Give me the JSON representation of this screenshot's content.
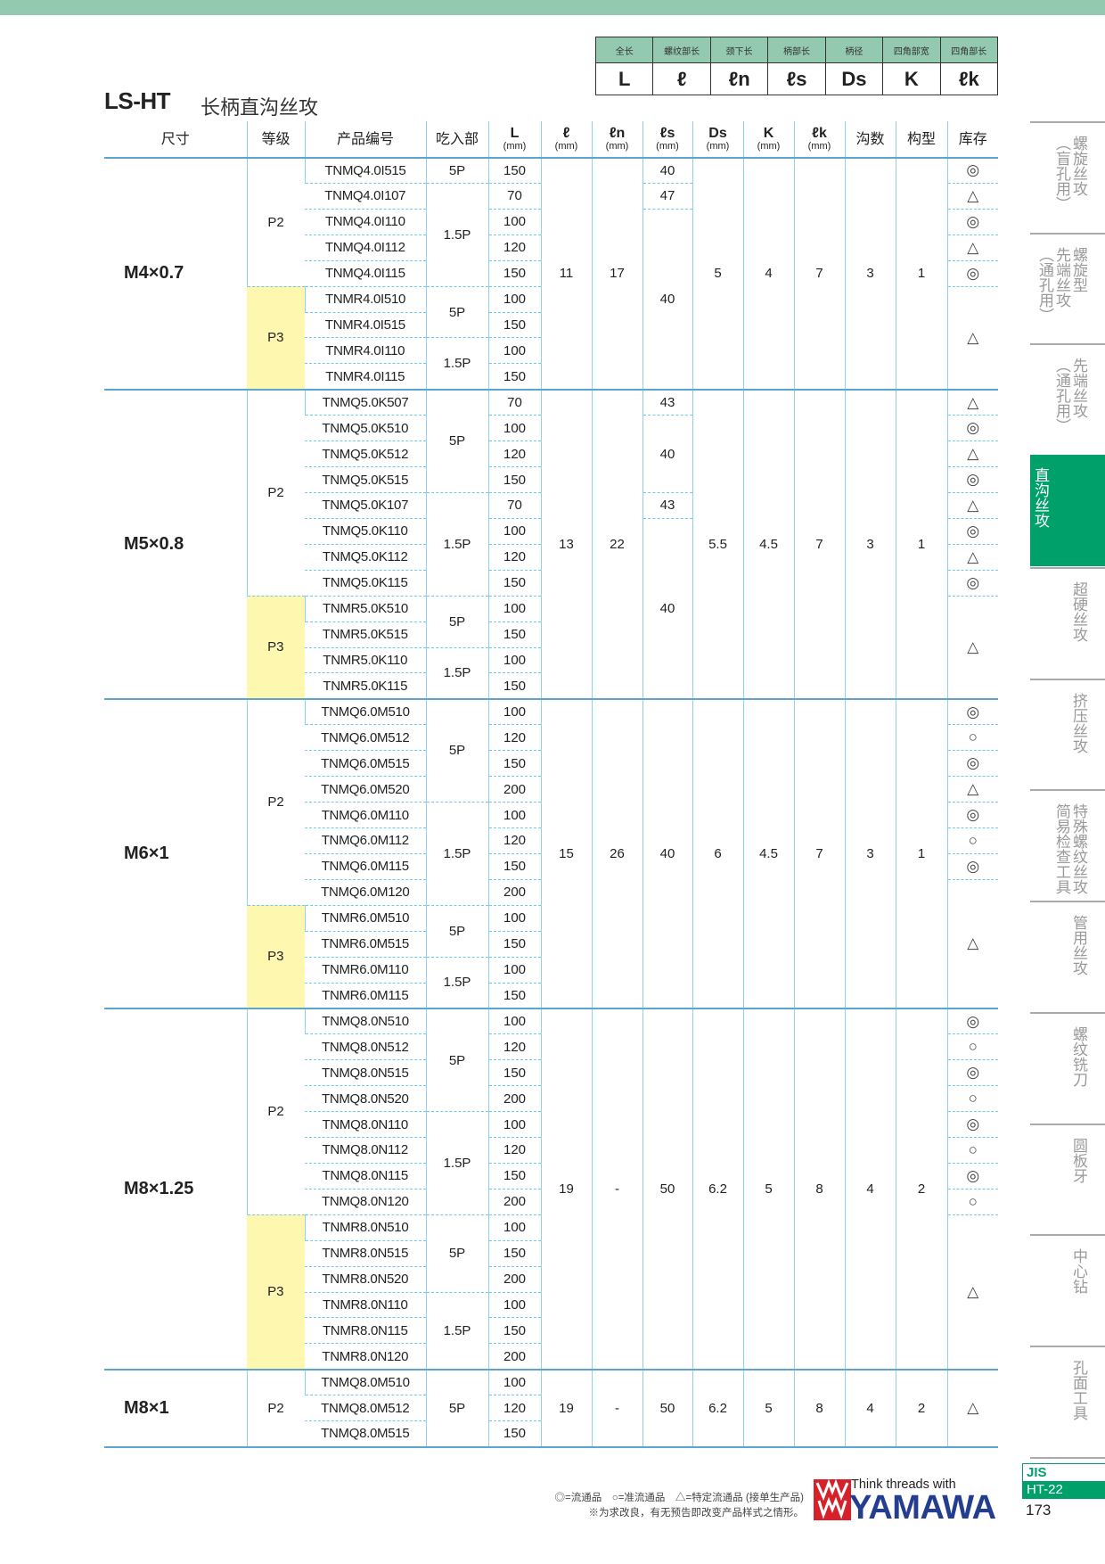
{
  "legend": {
    "headers": [
      "全长",
      "螺纹部长",
      "颈下长",
      "柄部长",
      "柄径",
      "四角部宽",
      "四角部长"
    ],
    "symbols": [
      "L",
      "ℓ",
      "ℓn",
      "ℓs",
      "Ds",
      "K",
      "ℓk"
    ]
  },
  "title": "LS-HT",
  "subtitle": "长柄直沟丝攻",
  "columns": [
    {
      "label": "尺寸"
    },
    {
      "label": "等级"
    },
    {
      "label": "产品编号"
    },
    {
      "label": "吃入部"
    },
    {
      "label": "L",
      "unit": "(mm)"
    },
    {
      "label": "ℓ",
      "unit": "(mm)"
    },
    {
      "label": "ℓn",
      "unit": "(mm)"
    },
    {
      "label": "ℓs",
      "unit": "(mm)"
    },
    {
      "label": "Ds",
      "unit": "(mm)"
    },
    {
      "label": "K",
      "unit": "(mm)"
    },
    {
      "label": "ℓk",
      "unit": "(mm)"
    },
    {
      "label": "沟数"
    },
    {
      "label": "构型"
    },
    {
      "label": "库存"
    }
  ],
  "groups": [
    {
      "size": "M4×0.7",
      "l": "11",
      "ln": "17",
      "ds": "5",
      "k": "4",
      "lk": "7",
      "flutes": "3",
      "type": "1",
      "grades": [
        [
          "P2",
          5
        ],
        [
          "P3",
          4
        ]
      ],
      "codes": [
        "TNMQ4.0I515",
        "TNMQ4.0I107",
        "TNMQ4.0I110",
        "TNMQ4.0I112",
        "TNMQ4.0I115",
        "TNMR4.0I510",
        "TNMR4.0I515",
        "TNMR4.0I110",
        "TNMR4.0I115"
      ],
      "chamfer": [
        [
          "5P",
          1
        ],
        [
          "1.5P",
          4
        ],
        [
          "5P",
          2
        ],
        [
          "1.5P",
          2
        ]
      ],
      "L": [
        "150",
        "70",
        "100",
        "120",
        "150",
        "100",
        "150",
        "100",
        "150"
      ],
      "ls": [
        [
          "40",
          1
        ],
        [
          "47",
          1
        ],
        [
          "40",
          7
        ]
      ],
      "stock": [
        [
          "◎",
          1
        ],
        [
          "△",
          1
        ],
        [
          "◎",
          1
        ],
        [
          "△",
          1
        ],
        [
          "◎",
          1
        ],
        [
          "△",
          4
        ]
      ]
    },
    {
      "size": "M5×0.8",
      "l": "13",
      "ln": "22",
      "ds": "5.5",
      "k": "4.5",
      "lk": "7",
      "flutes": "3",
      "type": "1",
      "grades": [
        [
          "P2",
          8
        ],
        [
          "P3",
          4
        ]
      ],
      "codes": [
        "TNMQ5.0K507",
        "TNMQ5.0K510",
        "TNMQ5.0K512",
        "TNMQ5.0K515",
        "TNMQ5.0K107",
        "TNMQ5.0K110",
        "TNMQ5.0K112",
        "TNMQ5.0K115",
        "TNMR5.0K510",
        "TNMR5.0K515",
        "TNMR5.0K110",
        "TNMR5.0K115"
      ],
      "chamfer": [
        [
          "5P",
          4
        ],
        [
          "1.5P",
          4
        ],
        [
          "5P",
          2
        ],
        [
          "1.5P",
          2
        ]
      ],
      "L": [
        "70",
        "100",
        "120",
        "150",
        "70",
        "100",
        "120",
        "150",
        "100",
        "150",
        "100",
        "150"
      ],
      "ls": [
        [
          "43",
          1
        ],
        [
          "40",
          3
        ],
        [
          "43",
          1
        ],
        [
          "40",
          7
        ]
      ],
      "stock": [
        [
          "△",
          1
        ],
        [
          "◎",
          1
        ],
        [
          "△",
          1
        ],
        [
          "◎",
          1
        ],
        [
          "△",
          1
        ],
        [
          "◎",
          1
        ],
        [
          "△",
          1
        ],
        [
          "◎",
          1
        ],
        [
          "△",
          4
        ]
      ]
    },
    {
      "size": "M6×1",
      "l": "15",
      "ln": "26",
      "ds": "6",
      "k": "4.5",
      "lk": "7",
      "flutes": "3",
      "type": "1",
      "grades": [
        [
          "P2",
          8
        ],
        [
          "P3",
          4
        ]
      ],
      "codes": [
        "TNMQ6.0M510",
        "TNMQ6.0M512",
        "TNMQ6.0M515",
        "TNMQ6.0M520",
        "TNMQ6.0M110",
        "TNMQ6.0M112",
        "TNMQ6.0M115",
        "TNMQ6.0M120",
        "TNMR6.0M510",
        "TNMR6.0M515",
        "TNMR6.0M110",
        "TNMR6.0M115"
      ],
      "chamfer": [
        [
          "5P",
          4
        ],
        [
          "1.5P",
          4
        ],
        [
          "5P",
          2
        ],
        [
          "1.5P",
          2
        ]
      ],
      "L": [
        "100",
        "120",
        "150",
        "200",
        "100",
        "120",
        "150",
        "200",
        "100",
        "150",
        "100",
        "150"
      ],
      "ls": [
        [
          "40",
          12
        ]
      ],
      "stock": [
        [
          "◎",
          1
        ],
        [
          "○",
          1
        ],
        [
          "◎",
          1
        ],
        [
          "△",
          1
        ],
        [
          "◎",
          1
        ],
        [
          "○",
          1
        ],
        [
          "◎",
          1
        ],
        [
          "△",
          5
        ]
      ]
    },
    {
      "size": "M8×1.25",
      "l": "19",
      "ln": "-",
      "ds": "6.2",
      "k": "5",
      "lk": "8",
      "flutes": "4",
      "type": "2",
      "grades": [
        [
          "P2",
          8
        ],
        [
          "P3",
          6
        ]
      ],
      "codes": [
        "TNMQ8.0N510",
        "TNMQ8.0N512",
        "TNMQ8.0N515",
        "TNMQ8.0N520",
        "TNMQ8.0N110",
        "TNMQ8.0N112",
        "TNMQ8.0N115",
        "TNMQ8.0N120",
        "TNMR8.0N510",
        "TNMR8.0N515",
        "TNMR8.0N520",
        "TNMR8.0N110",
        "TNMR8.0N115",
        "TNMR8.0N120"
      ],
      "chamfer": [
        [
          "5P",
          4
        ],
        [
          "1.5P",
          4
        ],
        [
          "5P",
          3
        ],
        [
          "1.5P",
          3
        ]
      ],
      "L": [
        "100",
        "120",
        "150",
        "200",
        "100",
        "120",
        "150",
        "200",
        "100",
        "150",
        "200",
        "100",
        "150",
        "200"
      ],
      "ls": [
        [
          "50",
          14
        ]
      ],
      "stock": [
        [
          "◎",
          1
        ],
        [
          "○",
          1
        ],
        [
          "◎",
          1
        ],
        [
          "○",
          1
        ],
        [
          "◎",
          1
        ],
        [
          "○",
          1
        ],
        [
          "◎",
          1
        ],
        [
          "○",
          1
        ],
        [
          "△",
          6
        ]
      ]
    },
    {
      "size": "M8×1",
      "l": "19",
      "ln": "-",
      "ds": "6.2",
      "k": "5",
      "lk": "8",
      "flutes": "4",
      "type": "2",
      "grades": [
        [
          "P2",
          3
        ]
      ],
      "codes": [
        "TNMQ8.0M510",
        "TNMQ8.0M512",
        "TNMQ8.0M515"
      ],
      "chamfer": [
        [
          "5P",
          3
        ]
      ],
      "L": [
        "100",
        "120",
        "150"
      ],
      "ls": [
        [
          "50",
          3
        ]
      ],
      "stock": [
        [
          "△",
          3
        ]
      ]
    }
  ],
  "sidebar": [
    {
      "lines": [
        "螺旋丝攻",
        "（盲孔用）"
      ]
    },
    {
      "lines": [
        "螺旋型",
        "先端丝攻",
        "（通孔用）"
      ]
    },
    {
      "lines": [
        "先端丝攻",
        "（通孔用）"
      ]
    },
    {
      "lines": [
        "直沟丝攻"
      ],
      "active": true
    },
    {
      "lines": [
        "超硬丝攻"
      ]
    },
    {
      "lines": [
        "挤压丝攻"
      ]
    },
    {
      "lines": [
        "特殊螺纹丝攻",
        "简易检查工具"
      ]
    },
    {
      "lines": [
        "管用丝攻"
      ]
    },
    {
      "lines": [
        "螺纹铣刀"
      ]
    },
    {
      "lines": [
        "圆板牙"
      ]
    },
    {
      "lines": [
        "中心钻"
      ]
    },
    {
      "lines": [
        "孔面工具"
      ]
    }
  ],
  "footer": {
    "legend": "◎=流通品　○=准流通品　△=特定流通品 (接单生产品)",
    "note": "※为求改良，有无预告即改变产品样式之情形。",
    "logo_tagline": "Think threads with",
    "logo_brand": "YAMAWA",
    "std": "JIS",
    "code": "HT-22",
    "page": "173"
  },
  "colors": {
    "accent": "#00a06a",
    "header_green": "#93c9ae",
    "grid": "#8fd3f0",
    "p3_fill": "#fdf7b0",
    "brand_blue": "#233e8f",
    "brand_red": "#d7212a"
  }
}
